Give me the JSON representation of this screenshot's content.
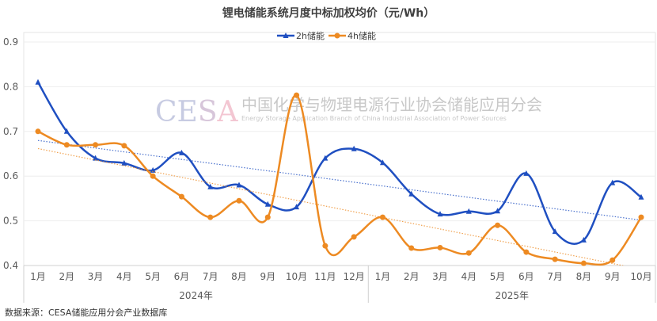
{
  "chart_data": {
    "type": "line",
    "title": "锂电储能系统月度中标加权均价（元/Wh）",
    "xlabel": "",
    "ylabel": "",
    "ylim": [
      0.4,
      0.9
    ],
    "yticks": [
      "0.4",
      "0.5",
      "0.6",
      "0.7",
      "0.8",
      "0.9"
    ],
    "grid": true,
    "legend_position": "top",
    "categories": [
      "1月",
      "2月",
      "3月",
      "4月",
      "5月",
      "6月",
      "7月",
      "8月",
      "9月",
      "10月",
      "11月",
      "12月",
      "1月",
      "2月",
      "3月",
      "4月",
      "5月",
      "6月",
      "7月",
      "8月",
      "9月",
      "10月"
    ],
    "groups": [
      {
        "label": "2024年",
        "count": 12
      },
      {
        "label": "2025年",
        "count": 10
      }
    ],
    "series": [
      {
        "name": "2h储能",
        "color": "#1f4fc1",
        "marker": "triangle",
        "trendline": true,
        "values": [
          0.81,
          0.7,
          0.64,
          0.629,
          0.613,
          0.652,
          0.576,
          0.58,
          0.537,
          0.531,
          0.64,
          0.661,
          0.63,
          0.56,
          0.515,
          0.521,
          0.522,
          0.606,
          0.476,
          0.457,
          0.585,
          0.553
        ]
      },
      {
        "name": "4h储能",
        "color": "#ed8a22",
        "marker": "circle",
        "trendline": true,
        "values": [
          0.7,
          0.67,
          0.67,
          0.668,
          0.6,
          0.554,
          0.508,
          0.545,
          0.508,
          0.781,
          0.444,
          0.464,
          0.508,
          0.439,
          0.44,
          0.428,
          0.49,
          0.43,
          0.414,
          0.405,
          0.412,
          0.508
        ]
      }
    ]
  },
  "watermark": {
    "logo": "CESA",
    "name_cn": "中国化学与物理电源行业协会储能应用分会",
    "name_en": "Energy Storage Application Branch of China Industrial Association of Power Sources"
  },
  "source": "数据来源：CESA储能应用分会产业数据库"
}
